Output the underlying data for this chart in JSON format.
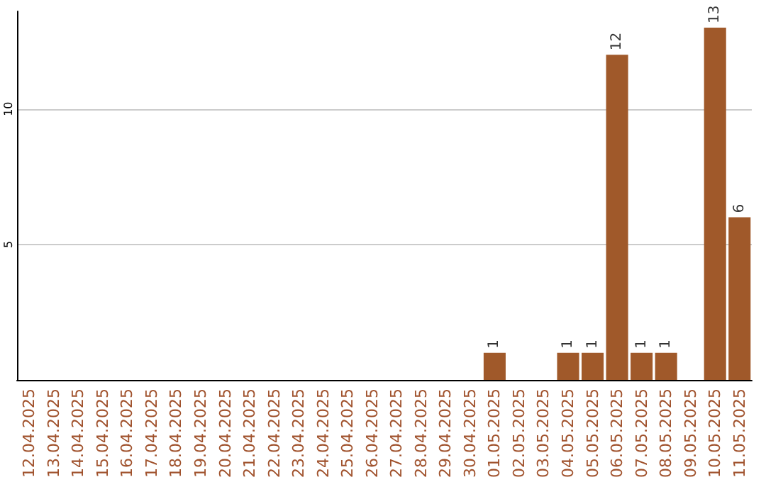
{
  "chart_data": {
    "type": "bar",
    "categories": [
      "12.04.2025",
      "13.04.2025",
      "14.04.2025",
      "15.04.2025",
      "16.04.2025",
      "17.04.2025",
      "18.04.2025",
      "19.04.2025",
      "20.04.2025",
      "21.04.2025",
      "22.04.2025",
      "23.04.2025",
      "24.04.2025",
      "25.04.2025",
      "26.04.2025",
      "27.04.2025",
      "28.04.2025",
      "29.04.2025",
      "30.04.2025",
      "01.05.2025",
      "02.05.2025",
      "03.05.2025",
      "04.05.2025",
      "05.05.2025",
      "06.05.2025",
      "07.05.2025",
      "08.05.2025",
      "09.05.2025",
      "10.05.2025",
      "11.05.2025"
    ],
    "values": [
      null,
      null,
      null,
      null,
      null,
      null,
      null,
      null,
      null,
      null,
      null,
      null,
      null,
      null,
      null,
      null,
      null,
      null,
      null,
      1,
      null,
      null,
      1,
      1,
      12,
      1,
      1,
      null,
      13,
      6
    ],
    "color": "#a0592a",
    "ylim": [
      0,
      13.6
    ],
    "yticks": [
      5,
      10
    ],
    "grid": "y",
    "data_labels": true
  }
}
